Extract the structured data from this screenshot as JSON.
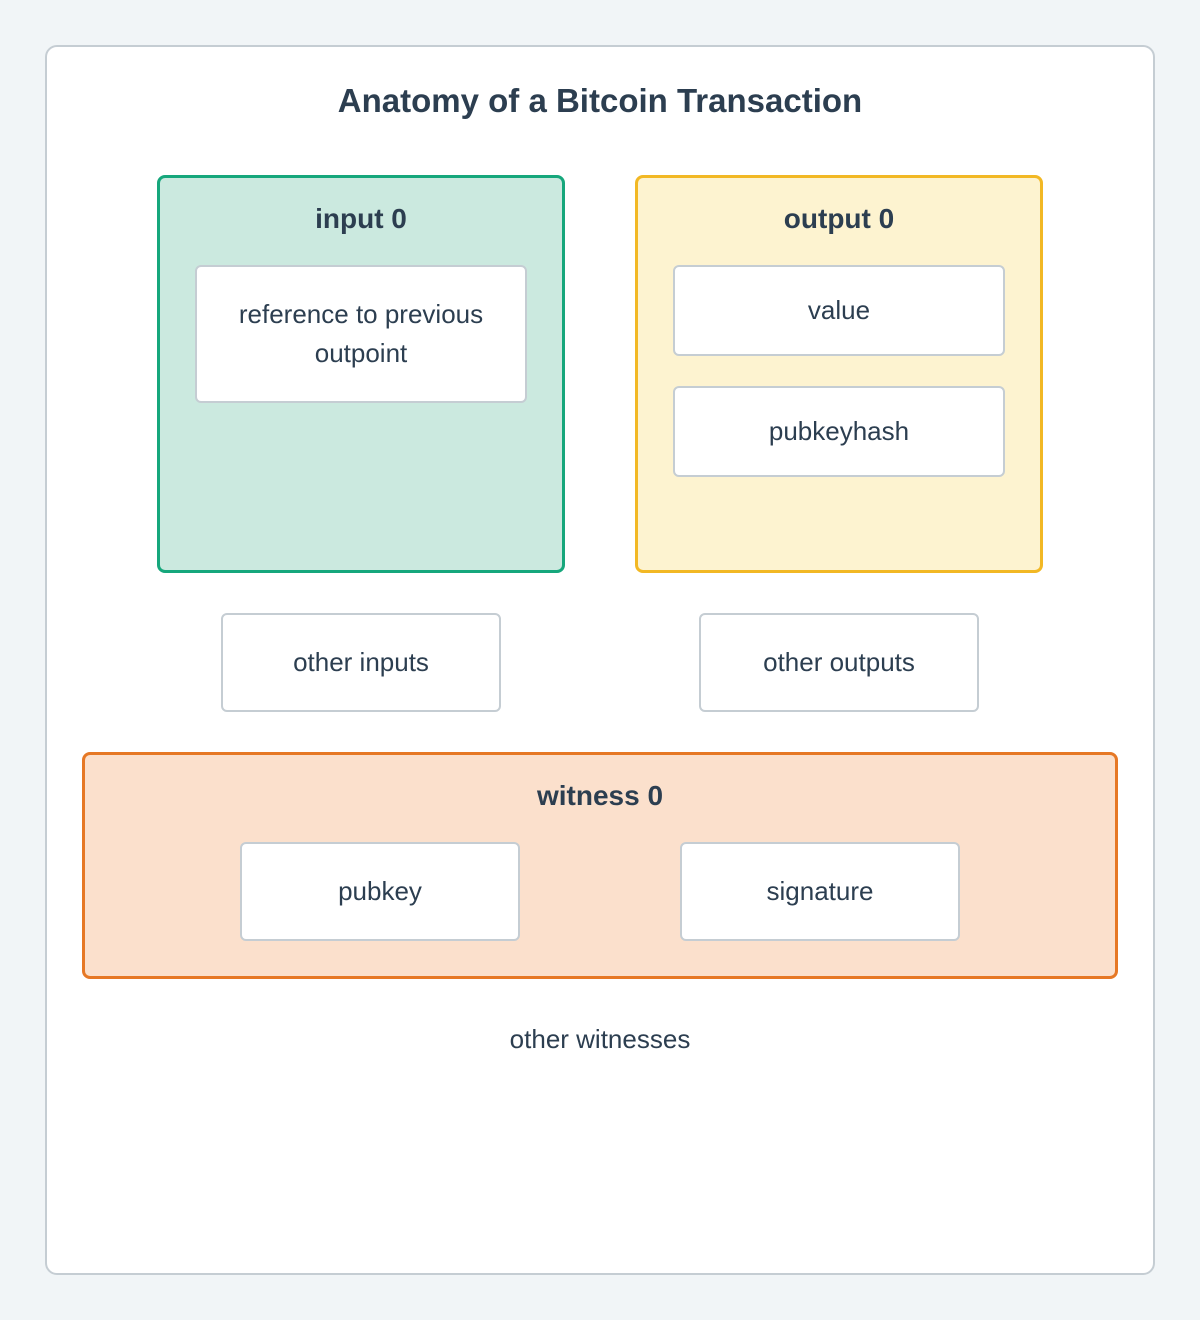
{
  "title": "Anatomy of a Bitcoin Transaction",
  "input_group": {
    "label": "input 0",
    "items": [
      "reference to previous outpoint"
    ],
    "border_color": "#16a77c",
    "fill_color": "#cbe9df"
  },
  "output_group": {
    "label": "output 0",
    "items": [
      "value",
      "pubkeyhash"
    ],
    "border_color": "#f2b824",
    "fill_color": "#fdf3d0"
  },
  "other_inputs_label": "other inputs",
  "other_outputs_label": "other outputs",
  "witness_group": {
    "label": "witness 0",
    "items": [
      "pubkey",
      "signature"
    ],
    "border_color": "#e67825",
    "fill_color": "#fbe0cc"
  },
  "other_witnesses_label": "other witnesses",
  "styling": {
    "page_background": "#f1f5f7",
    "container_background": "#ffffff",
    "container_border": "#c5cdd3",
    "inner_box_background": "#ffffff",
    "inner_box_border": "#c5cdd3",
    "text_color": "#2c3e50",
    "title_fontsize": 33,
    "group_title_fontsize": 28,
    "body_fontsize": 26,
    "border_radius_outer": 12,
    "border_radius_group": 8,
    "border_radius_inner": 6,
    "group_border_width": 3,
    "inner_border_width": 2
  }
}
